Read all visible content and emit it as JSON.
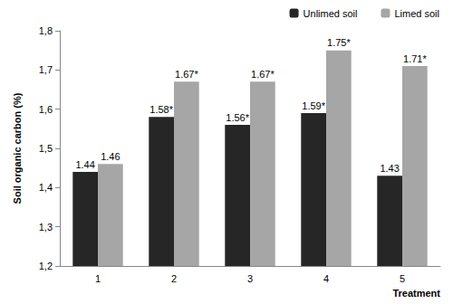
{
  "chart_data": {
    "type": "bar",
    "x_label": "Treatment",
    "y_label": "Soil organic carbon (%)",
    "categories": [
      "1",
      "2",
      "3",
      "4",
      "5"
    ],
    "series": [
      {
        "name": "Unlimed soil",
        "color": "#262626",
        "values": [
          1.44,
          1.58,
          1.56,
          1.59,
          1.43
        ],
        "value_labels": [
          "1.44",
          "1.58*",
          "1.56*",
          "1.59*",
          "1.43"
        ]
      },
      {
        "name": "Limed soil",
        "color": "#a6a6a6",
        "values": [
          1.46,
          1.67,
          1.67,
          1.75,
          1.71
        ],
        "value_labels": [
          "1.46",
          "1.67*",
          "1.67*",
          "1.75*",
          "1.71*"
        ]
      }
    ],
    "ylim": [
      1.2,
      1.8
    ],
    "yticks": [
      {
        "value": 1.2,
        "label": "1,2"
      },
      {
        "value": 1.3,
        "label": "1,3"
      },
      {
        "value": 1.4,
        "label": "1,4"
      },
      {
        "value": 1.5,
        "label": "1,5"
      },
      {
        "value": 1.6,
        "label": "1,6"
      },
      {
        "value": 1.7,
        "label": "1,7"
      },
      {
        "value": 1.8,
        "label": "1,8"
      }
    ],
    "grid": false,
    "legend": "top-right",
    "data_labels": true
  }
}
